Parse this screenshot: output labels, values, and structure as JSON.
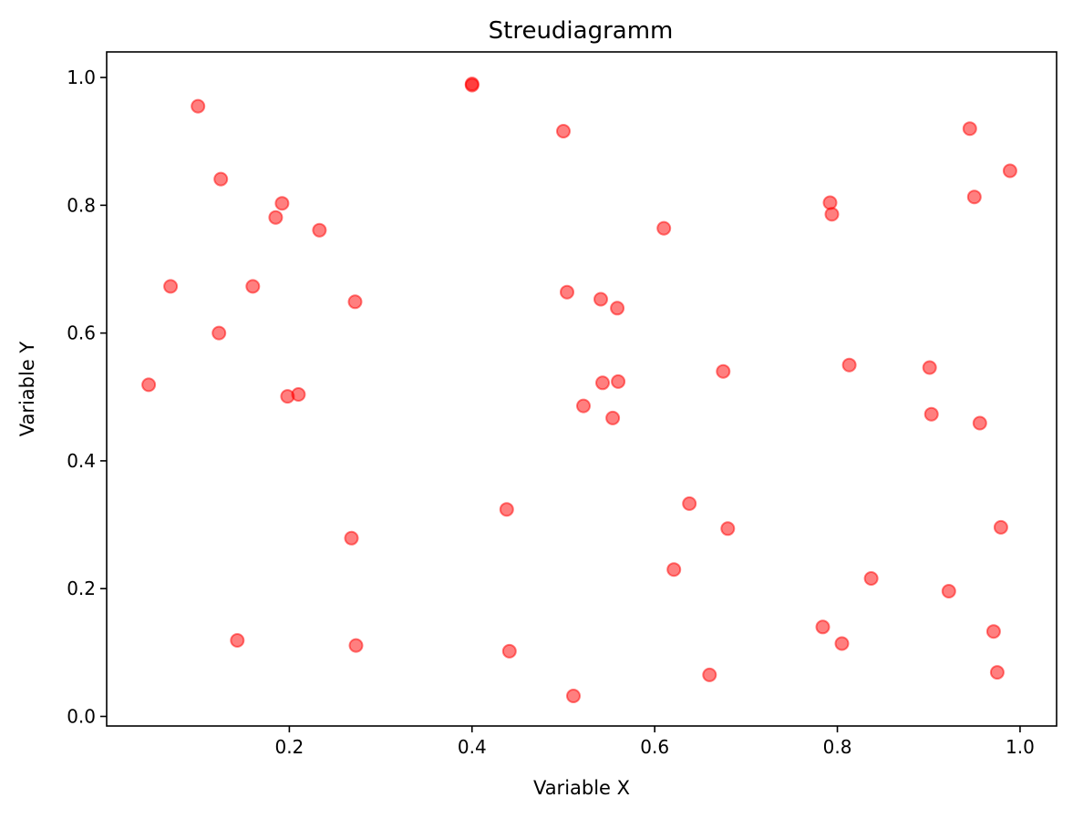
{
  "chart_data": {
    "type": "scatter",
    "title": "Streudiagramm",
    "xlabel": "Variable X",
    "ylabel": "Variable Y",
    "xlim": [
      0.0,
      1.04
    ],
    "ylim": [
      -0.015,
      1.04
    ],
    "xticks": [
      {
        "value": 0.2,
        "label": "0.2"
      },
      {
        "value": 0.4,
        "label": "0.4"
      },
      {
        "value": 0.6,
        "label": "0.6"
      },
      {
        "value": 0.8,
        "label": "0.8"
      },
      {
        "value": 1.0,
        "label": "1.0"
      }
    ],
    "yticks": [
      {
        "value": 0.0,
        "label": "0.0"
      },
      {
        "value": 0.2,
        "label": "0.2"
      },
      {
        "value": 0.4,
        "label": "0.4"
      },
      {
        "value": 0.6,
        "label": "0.6"
      },
      {
        "value": 0.8,
        "label": "0.8"
      },
      {
        "value": 1.0,
        "label": "1.0"
      }
    ],
    "grid": false,
    "marker_color": "#ff0000",
    "marker_alpha": 0.5,
    "points": [
      {
        "x": 0.046,
        "y": 0.519
      },
      {
        "x": 0.07,
        "y": 0.673
      },
      {
        "x": 0.1,
        "y": 0.955
      },
      {
        "x": 0.123,
        "y": 0.6
      },
      {
        "x": 0.125,
        "y": 0.841
      },
      {
        "x": 0.143,
        "y": 0.119
      },
      {
        "x": 0.16,
        "y": 0.673
      },
      {
        "x": 0.185,
        "y": 0.781
      },
      {
        "x": 0.192,
        "y": 0.803
      },
      {
        "x": 0.198,
        "y": 0.501
      },
      {
        "x": 0.21,
        "y": 0.504
      },
      {
        "x": 0.233,
        "y": 0.761
      },
      {
        "x": 0.268,
        "y": 0.279
      },
      {
        "x": 0.272,
        "y": 0.649
      },
      {
        "x": 0.273,
        "y": 0.111
      },
      {
        "x": 0.4,
        "y": 0.99
      },
      {
        "x": 0.4,
        "y": 0.988
      },
      {
        "x": 0.438,
        "y": 0.324
      },
      {
        "x": 0.441,
        "y": 0.102
      },
      {
        "x": 0.5,
        "y": 0.916
      },
      {
        "x": 0.504,
        "y": 0.664
      },
      {
        "x": 0.511,
        "y": 0.032
      },
      {
        "x": 0.522,
        "y": 0.486
      },
      {
        "x": 0.541,
        "y": 0.653
      },
      {
        "x": 0.543,
        "y": 0.522
      },
      {
        "x": 0.554,
        "y": 0.467
      },
      {
        "x": 0.559,
        "y": 0.639
      },
      {
        "x": 0.56,
        "y": 0.524
      },
      {
        "x": 0.61,
        "y": 0.764
      },
      {
        "x": 0.621,
        "y": 0.23
      },
      {
        "x": 0.638,
        "y": 0.333
      },
      {
        "x": 0.66,
        "y": 0.065
      },
      {
        "x": 0.675,
        "y": 0.54
      },
      {
        "x": 0.68,
        "y": 0.294
      },
      {
        "x": 0.784,
        "y": 0.14
      },
      {
        "x": 0.792,
        "y": 0.804
      },
      {
        "x": 0.794,
        "y": 0.786
      },
      {
        "x": 0.805,
        "y": 0.114
      },
      {
        "x": 0.813,
        "y": 0.55
      },
      {
        "x": 0.837,
        "y": 0.216
      },
      {
        "x": 0.901,
        "y": 0.546
      },
      {
        "x": 0.903,
        "y": 0.473
      },
      {
        "x": 0.922,
        "y": 0.196
      },
      {
        "x": 0.945,
        "y": 0.92
      },
      {
        "x": 0.95,
        "y": 0.813
      },
      {
        "x": 0.956,
        "y": 0.459
      },
      {
        "x": 0.971,
        "y": 0.133
      },
      {
        "x": 0.975,
        "y": 0.069
      },
      {
        "x": 0.979,
        "y": 0.296
      },
      {
        "x": 0.989,
        "y": 0.854
      }
    ]
  }
}
